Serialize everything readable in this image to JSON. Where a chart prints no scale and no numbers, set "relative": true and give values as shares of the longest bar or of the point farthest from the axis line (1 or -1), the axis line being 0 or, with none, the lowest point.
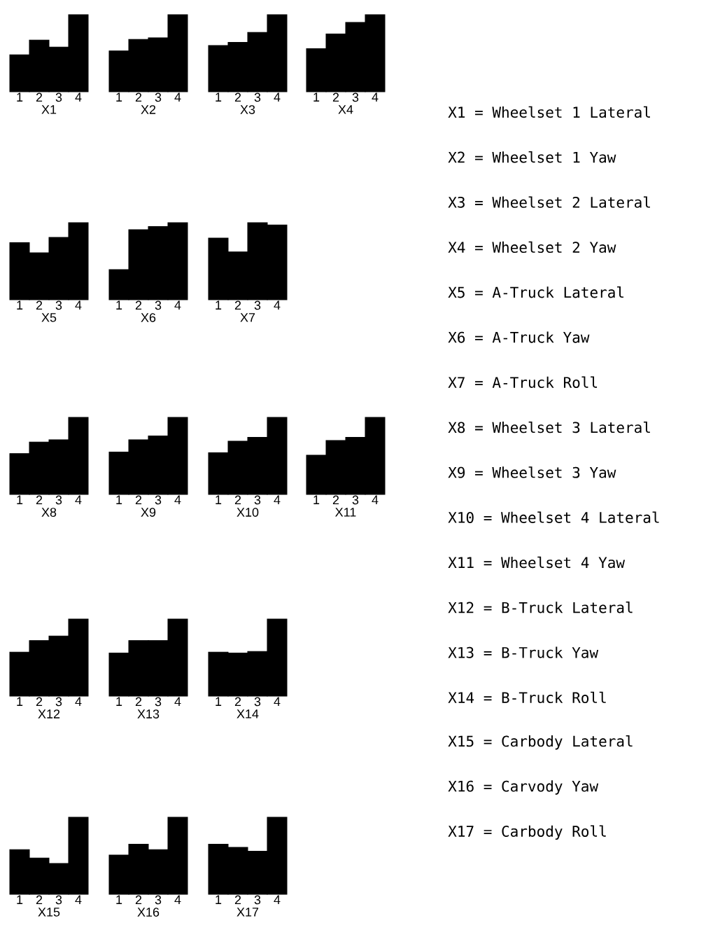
{
  "chart_data": [
    {
      "type": "bar",
      "relative": true,
      "xlabel": "X1",
      "categories": [
        "1",
        "2",
        "3",
        "4"
      ],
      "values": [
        0.48,
        0.67,
        0.58,
        1
      ],
      "color": "#000000"
    },
    {
      "type": "bar",
      "relative": true,
      "xlabel": "X2",
      "categories": [
        "1",
        "2",
        "3",
        "4"
      ],
      "values": [
        0.53,
        0.68,
        0.7,
        1
      ],
      "color": "#000000"
    },
    {
      "type": "bar",
      "relative": true,
      "xlabel": "X3",
      "categories": [
        "1",
        "2",
        "3",
        "4"
      ],
      "values": [
        0.6,
        0.64,
        0.77,
        1
      ],
      "color": "#000000"
    },
    {
      "type": "bar",
      "relative": true,
      "xlabel": "X4",
      "categories": [
        "1",
        "2",
        "3",
        "4"
      ],
      "values": [
        0.56,
        0.75,
        0.9,
        1
      ],
      "color": "#000000"
    },
    {
      "type": "bar",
      "relative": true,
      "xlabel": "X5",
      "categories": [
        "1",
        "2",
        "3",
        "4"
      ],
      "values": [
        0.74,
        0.61,
        0.81,
        1
      ],
      "color": "#000000"
    },
    {
      "type": "bar",
      "relative": true,
      "xlabel": "X6",
      "categories": [
        "1",
        "2",
        "3",
        "4"
      ],
      "values": [
        0.39,
        0.91,
        0.95,
        1
      ],
      "color": "#000000"
    },
    {
      "type": "bar",
      "relative": true,
      "xlabel": "X7",
      "categories": [
        "1",
        "2",
        "3",
        "4"
      ],
      "values": [
        0.8,
        0.62,
        1,
        0.97
      ],
      "color": "#000000"
    },
    {
      "type": "bar",
      "relative": true,
      "xlabel": "X8",
      "categories": [
        "1",
        "2",
        "3",
        "4"
      ],
      "values": [
        0.53,
        0.68,
        0.71,
        1
      ],
      "color": "#000000"
    },
    {
      "type": "bar",
      "relative": true,
      "xlabel": "X9",
      "categories": [
        "1",
        "2",
        "3",
        "4"
      ],
      "values": [
        0.55,
        0.71,
        0.76,
        1
      ],
      "color": "#000000"
    },
    {
      "type": "bar",
      "relative": true,
      "xlabel": "X10",
      "categories": [
        "1",
        "2",
        "3",
        "4"
      ],
      "values": [
        0.54,
        0.69,
        0.74,
        1
      ],
      "color": "#000000"
    },
    {
      "type": "bar",
      "relative": true,
      "xlabel": "X11",
      "categories": [
        "1",
        "2",
        "3",
        "4"
      ],
      "values": [
        0.51,
        0.7,
        0.74,
        1
      ],
      "color": "#000000"
    },
    {
      "type": "bar",
      "relative": true,
      "xlabel": "X12",
      "categories": [
        "1",
        "2",
        "3",
        "4"
      ],
      "values": [
        0.57,
        0.72,
        0.78,
        1
      ],
      "color": "#000000"
    },
    {
      "type": "bar",
      "relative": true,
      "xlabel": "X13",
      "categories": [
        "1",
        "2",
        "3",
        "4"
      ],
      "values": [
        0.56,
        0.72,
        0.72,
        1
      ],
      "color": "#000000"
    },
    {
      "type": "bar",
      "relative": true,
      "xlabel": "X14",
      "categories": [
        "1",
        "2",
        "3",
        "4"
      ],
      "values": [
        0.57,
        0.56,
        0.58,
        1
      ],
      "color": "#000000"
    },
    {
      "type": "bar",
      "relative": true,
      "xlabel": "X15",
      "categories": [
        "1",
        "2",
        "3",
        "4"
      ],
      "values": [
        0.58,
        0.47,
        0.4,
        1
      ],
      "color": "#000000"
    },
    {
      "type": "bar",
      "relative": true,
      "xlabel": "X16",
      "categories": [
        "1",
        "2",
        "3",
        "4"
      ],
      "values": [
        0.51,
        0.65,
        0.58,
        1
      ],
      "color": "#000000"
    },
    {
      "type": "bar",
      "relative": true,
      "xlabel": "X17",
      "categories": [
        "1",
        "2",
        "3",
        "4"
      ],
      "values": [
        0.65,
        0.61,
        0.56,
        1
      ],
      "color": "#000000"
    },
    {
      "type": "other",
      "annotations": [
        "X1  = Wheelset 1 Lateral",
        "X2  = Wheelset 1 Yaw",
        "X3  = Wheelset 2 Lateral",
        "X4  = Wheelset 2 Yaw",
        "X5  = A-Truck Lateral",
        "X6  = A-Truck Yaw",
        "X7  = A-Truck Roll",
        "X8  = Wheelset 3 Lateral",
        "X9  = Wheelset 3 Yaw",
        "X10 = Wheelset 4 Lateral",
        "X11 = Wheelset 4 Yaw",
        "X12 = B-Truck Lateral",
        "X13 = B-Truck Yaw",
        "X14 = B-Truck Roll",
        "X15 = Carbody Lateral",
        "X16 = Carvody Yaw",
        "X17 = Carbody Roll"
      ]
    }
  ]
}
